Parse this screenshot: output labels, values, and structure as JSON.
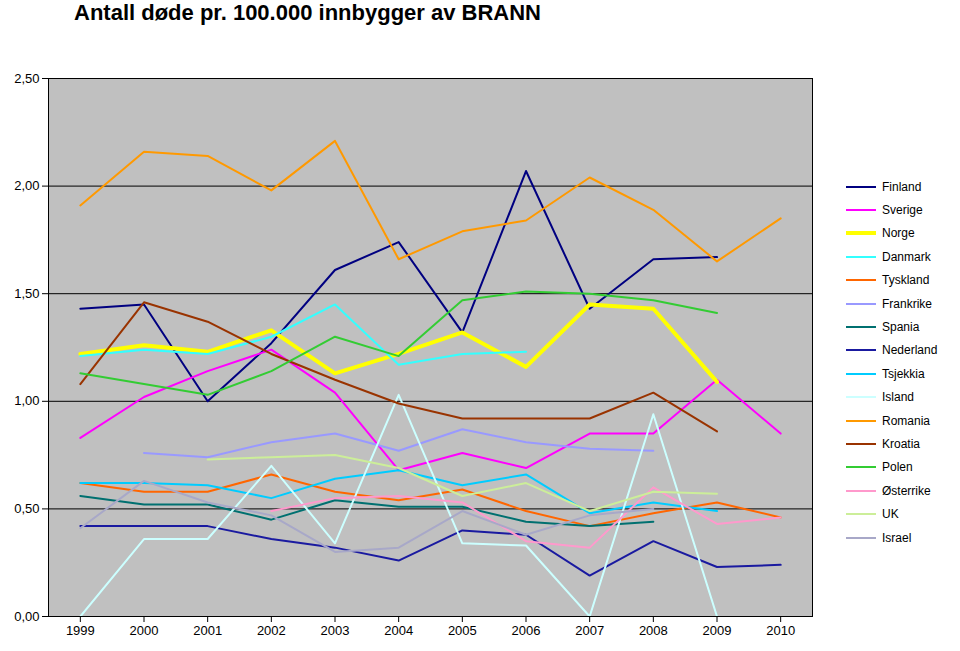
{
  "chart_data": {
    "type": "line",
    "title": "Antall døde pr. 100.000 innbygger av BRANN",
    "x": [
      1999,
      2000,
      2001,
      2002,
      2003,
      2004,
      2005,
      2006,
      2007,
      2008,
      2009,
      2010
    ],
    "xlim": [
      1998.5,
      2010.5
    ],
    "xticks": [
      1999,
      2000,
      2001,
      2002,
      2003,
      2004,
      2005,
      2006,
      2007,
      2008,
      2009,
      2010
    ],
    "ylim": [
      0,
      2.5
    ],
    "yticks": [
      {
        "value": 0,
        "label": "0,00"
      },
      {
        "value": 0.5,
        "label": "0,50"
      },
      {
        "value": 1,
        "label": "1,00"
      },
      {
        "value": 1.5,
        "label": "1,50"
      },
      {
        "value": 2,
        "label": "2,00"
      },
      {
        "value": 2.5,
        "label": "2,50"
      }
    ],
    "grid": true,
    "legend": "right",
    "series": [
      {
        "name": "Finland",
        "color": "#000080",
        "line_style": "solid",
        "values": [
          1.43,
          1.45,
          1.0,
          1.27,
          1.61,
          1.74,
          1.32,
          2.07,
          1.43,
          1.66,
          1.67,
          null
        ]
      },
      {
        "name": "Sverige",
        "color": "#ff00ff",
        "line_style": "solid",
        "values": [
          0.83,
          1.02,
          1.14,
          1.24,
          1.04,
          0.68,
          0.76,
          0.69,
          0.85,
          0.85,
          1.1,
          0.85
        ]
      },
      {
        "name": "Norge",
        "color": "#ffff00",
        "line_style": "thick",
        "values": [
          1.22,
          1.26,
          1.23,
          1.33,
          1.13,
          1.22,
          1.32,
          1.16,
          1.45,
          1.43,
          1.09,
          null
        ]
      },
      {
        "name": "Danmark",
        "color": "#33ffff",
        "line_style": "solid",
        "values": [
          1.21,
          1.24,
          1.22,
          1.3,
          1.45,
          1.17,
          1.22,
          1.23,
          null,
          null,
          null,
          null
        ]
      },
      {
        "name": "Tyskland",
        "color": "#ff6600",
        "line_style": "solid",
        "values": [
          0.62,
          0.58,
          0.58,
          0.66,
          0.58,
          0.54,
          0.59,
          0.49,
          0.42,
          0.48,
          0.53,
          0.46
        ]
      },
      {
        "name": "Frankrike",
        "color": "#9999ff",
        "line_style": "solid",
        "values": [
          null,
          0.76,
          0.74,
          0.81,
          0.85,
          0.77,
          0.87,
          0.81,
          0.78,
          0.77,
          null,
          null
        ]
      },
      {
        "name": "Spania",
        "color": "#007070",
        "line_style": "solid",
        "values": [
          0.56,
          0.52,
          0.52,
          0.45,
          0.54,
          0.51,
          0.51,
          0.44,
          0.42,
          0.44,
          null,
          null
        ]
      },
      {
        "name": "Nederland",
        "color": "#1a1aa0",
        "line_style": "solid",
        "values": [
          0.42,
          0.42,
          0.42,
          0.36,
          0.32,
          0.26,
          0.4,
          0.38,
          0.19,
          0.35,
          0.23,
          0.24
        ]
      },
      {
        "name": "Tsjekkia",
        "color": "#00ccff",
        "line_style": "solid",
        "values": [
          0.62,
          0.62,
          0.61,
          0.55,
          0.64,
          0.68,
          0.61,
          0.66,
          0.48,
          0.53,
          0.49,
          null
        ]
      },
      {
        "name": "Island",
        "color": "#ccffff",
        "line_style": "solid",
        "values": [
          0.0,
          0.36,
          0.36,
          0.7,
          0.34,
          1.03,
          0.34,
          0.33,
          0.0,
          0.94,
          0.0,
          null
        ]
      },
      {
        "name": "Romania",
        "color": "#ff9900",
        "line_style": "solid",
        "values": [
          1.91,
          2.16,
          2.14,
          1.98,
          2.21,
          1.66,
          1.79,
          1.84,
          2.04,
          1.89,
          1.65,
          1.85
        ]
      },
      {
        "name": "Kroatia",
        "color": "#993300",
        "line_style": "solid",
        "values": [
          1.08,
          1.46,
          1.37,
          1.22,
          1.1,
          0.99,
          0.92,
          0.92,
          0.92,
          1.04,
          0.86,
          null
        ]
      },
      {
        "name": "Polen",
        "color": "#33cc33",
        "line_style": "solid",
        "values": [
          1.13,
          1.08,
          1.03,
          1.14,
          1.3,
          1.21,
          1.47,
          1.51,
          1.5,
          1.47,
          1.41,
          null
        ]
      },
      {
        "name": "Østerrike",
        "color": "#ff99cc",
        "line_style": "solid",
        "values": [
          null,
          null,
          null,
          0.49,
          0.55,
          0.56,
          0.53,
          0.35,
          0.32,
          0.6,
          0.43,
          0.46
        ]
      },
      {
        "name": "UK",
        "color": "#ccee99",
        "line_style": "solid",
        "values": [
          null,
          null,
          0.73,
          0.74,
          0.75,
          0.69,
          0.56,
          0.62,
          0.49,
          0.58,
          0.57,
          null
        ]
      },
      {
        "name": "Israel",
        "color": "#a8a8c8",
        "line_style": "solid",
        "values": [
          0.41,
          0.63,
          0.53,
          0.47,
          0.3,
          0.32,
          0.49,
          0.38,
          0.47,
          0.5,
          null,
          null
        ]
      }
    ]
  }
}
